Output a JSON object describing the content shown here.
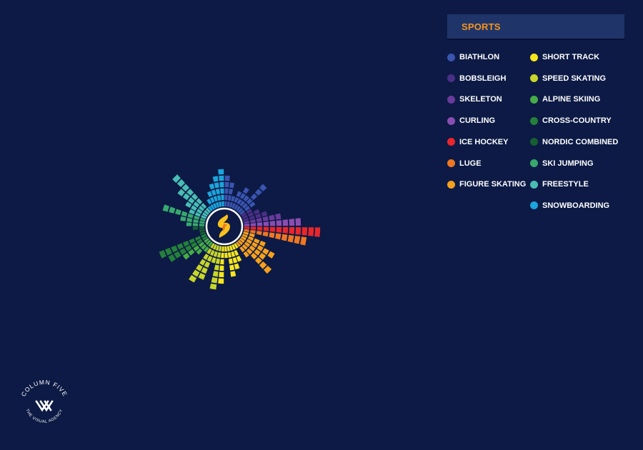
{
  "legend": {
    "title": "SPORTS"
  },
  "chart_data": {
    "type": "radial-bar",
    "title": "",
    "series": [
      {
        "name": "BIATHLON",
        "color": "#3a54b0",
        "values": [
          5,
          4,
          2,
          3,
          4,
          3,
          6,
          3
        ]
      },
      {
        "name": "BOBSLEIGH",
        "color": "#4a2f86",
        "values": [
          2,
          3,
          4
        ]
      },
      {
        "name": "SKELETON",
        "color": "#6a3a9c",
        "values": [
          6
        ]
      },
      {
        "name": "CURLING",
        "color": "#8a4eb2",
        "values": [
          9
        ]
      },
      {
        "name": "ICE HOCKEY",
        "color": "#e8262b",
        "values": [
          12
        ]
      },
      {
        "name": "LUGE",
        "color": "#ef7622",
        "values": [
          10
        ]
      },
      {
        "name": "FIGURE SKATING",
        "color": "#f5a01c",
        "values": [
          2,
          4,
          6,
          5,
          7,
          3
        ]
      },
      {
        "name": "SHORT TRACK",
        "color": "#f8e61c",
        "values": [
          1,
          3,
          4,
          5,
          2,
          6
        ]
      },
      {
        "name": "SPEED SKATING",
        "color": "#c7d629",
        "values": [
          7,
          3,
          6,
          7
        ]
      },
      {
        "name": "ALPINE SKIING",
        "color": "#47ac46",
        "values": [
          2,
          3,
          5
        ]
      },
      {
        "name": "CROSS-COUNTRY",
        "color": "#24803a",
        "values": [
          7,
          8
        ]
      },
      {
        "name": "NORDIC COMBINED",
        "color": "#175e32",
        "values": [
          1,
          1,
          2
        ]
      },
      {
        "name": "SKI JUMPING",
        "color": "#38a86e",
        "values": [
          3,
          4,
          7
        ]
      },
      {
        "name": "FREESTYLE",
        "color": "#48bdb4",
        "values": [
          3,
          4,
          6,
          8
        ]
      },
      {
        "name": "SNOWBOARDING",
        "color": "#1ba5dc",
        "values": [
          1,
          2,
          3,
          4,
          5,
          6
        ]
      }
    ],
    "legend_position": "top-right",
    "grid": false
  },
  "logo": {
    "text": "COLUMN FIVE",
    "tagline": "THE VISUAL AGENCY"
  }
}
